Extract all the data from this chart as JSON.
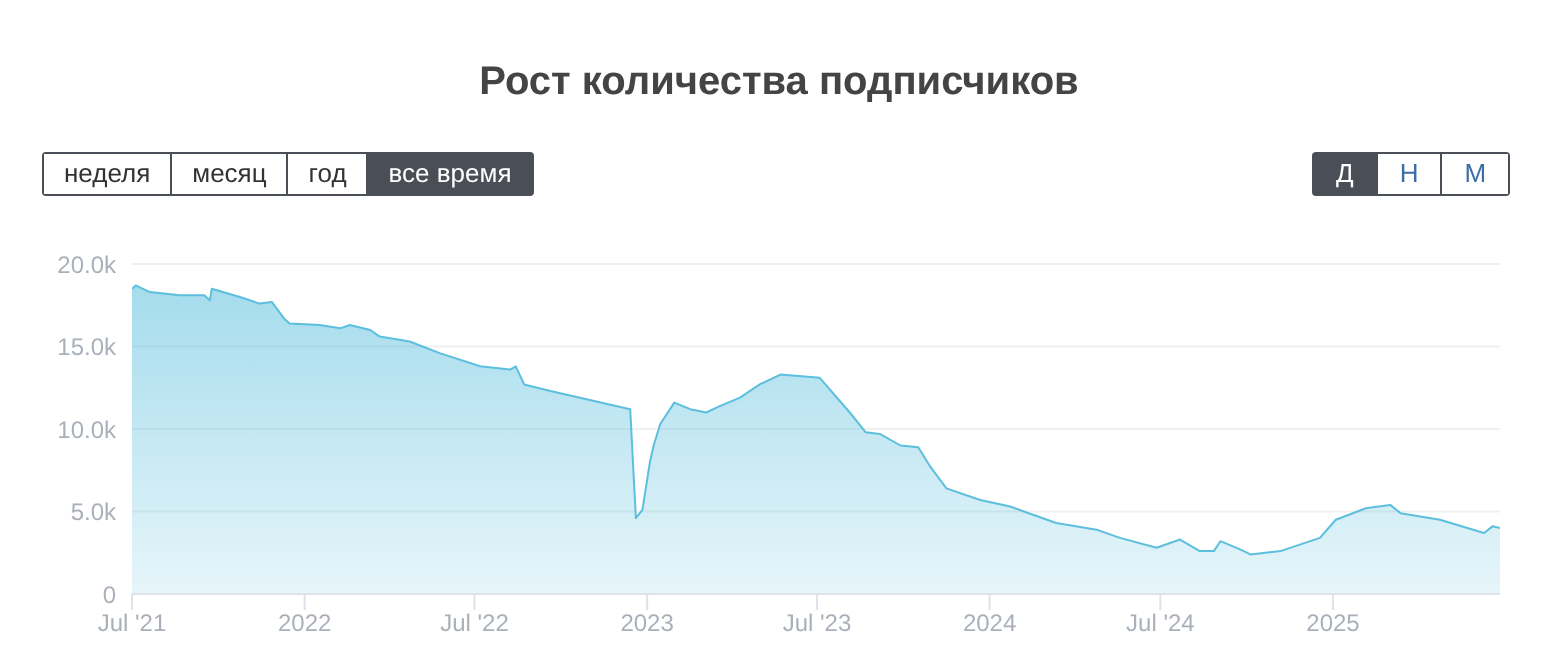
{
  "chart_data": {
    "type": "area",
    "title": "Рост количества подписчиков",
    "annotations": [
      "неделя",
      "месяц",
      "год",
      "все время",
      "Д",
      "Н",
      "М"
    ],
    "x": [
      "2021-07-01",
      "2021-07-05",
      "2021-07-20",
      "2021-08-21",
      "2021-09-16",
      "2021-09-22",
      "2021-09-24",
      "2021-10-24",
      "2021-11-14",
      "2021-11-27",
      "2021-12-10",
      "2021-12-16",
      "2022-01-17",
      "2022-02-08",
      "2022-02-18",
      "2022-03-12",
      "2022-03-22",
      "2022-04-23",
      "2022-05-25",
      "2022-07-07",
      "2022-08-08",
      "2022-08-14",
      "2022-08-23",
      "2022-09-20",
      "2022-12-14",
      "2022-12-20",
      "2022-12-27",
      "2023-01-04",
      "2023-01-08",
      "2023-01-15",
      "2023-01-30",
      "2023-02-16",
      "2023-03-05",
      "2023-03-20",
      "2023-04-10",
      "2023-05-01",
      "2023-05-23",
      "2023-07-04",
      "2023-08-05",
      "2023-08-22",
      "2023-09-06",
      "2023-09-28",
      "2023-10-17",
      "2023-10-30",
      "2023-11-16",
      "2023-12-22",
      "2024-01-23",
      "2024-03-12",
      "2024-04-24",
      "2024-05-19",
      "2024-06-27",
      "2024-07-22",
      "2024-08-12",
      "2024-08-27",
      "2024-09-03",
      "2024-09-24",
      "2024-10-05",
      "2024-11-06",
      "2024-12-18",
      "2025-01-04",
      "2025-02-05",
      "2025-03-03",
      "2025-03-14",
      "2025-04-25",
      "2025-06-11",
      "2025-06-20",
      "2025-06-28"
    ],
    "series": [
      {
        "color": "#5bbfdd",
        "values": [
          18500,
          18700,
          18300,
          18100,
          18100,
          17800,
          18500,
          18000,
          17600,
          17700,
          16700,
          16400,
          16300,
          16100,
          16300,
          16000,
          15600,
          15300,
          14600,
          13800,
          13600,
          13800,
          12700,
          12300,
          11200,
          4600,
          5100,
          8000,
          9000,
          10300,
          11600,
          11200,
          11000,
          11400,
          11900,
          12700,
          13300,
          13100,
          11000,
          9800,
          9700,
          9000,
          8900,
          7700,
          6400,
          5700,
          5300,
          4300,
          3900,
          3400,
          2800,
          3300,
          2600,
          2600,
          3200,
          2700,
          2400,
          2600,
          3400,
          4500,
          5200,
          5400,
          4900,
          4500,
          3700,
          4100,
          4000
        ]
      }
    ],
    "xlim": [
      "2021-07-01",
      "2025-06-28"
    ],
    "xticks": [
      {
        "value": "2021-07-01",
        "label": "Jul '21"
      },
      {
        "value": "2022-01-01",
        "label": "2022"
      },
      {
        "value": "2022-07-01",
        "label": "Jul '22"
      },
      {
        "value": "2023-01-01",
        "label": "2023"
      },
      {
        "value": "2023-07-01",
        "label": "Jul '23"
      },
      {
        "value": "2024-01-01",
        "label": "2024"
      },
      {
        "value": "2024-07-01",
        "label": "Jul '24"
      },
      {
        "value": "2025-01-01",
        "label": "2025"
      }
    ],
    "ylim": [
      0,
      20000
    ],
    "yticks": [
      0,
      {
        "value": 5000,
        "label": "5.0k"
      },
      {
        "value": 10000,
        "label": "10.0k"
      },
      {
        "value": 15000,
        "label": "15.0k"
      },
      {
        "value": 20000,
        "label": "20.0k"
      }
    ],
    "grid": "y",
    "legend": false
  }
}
